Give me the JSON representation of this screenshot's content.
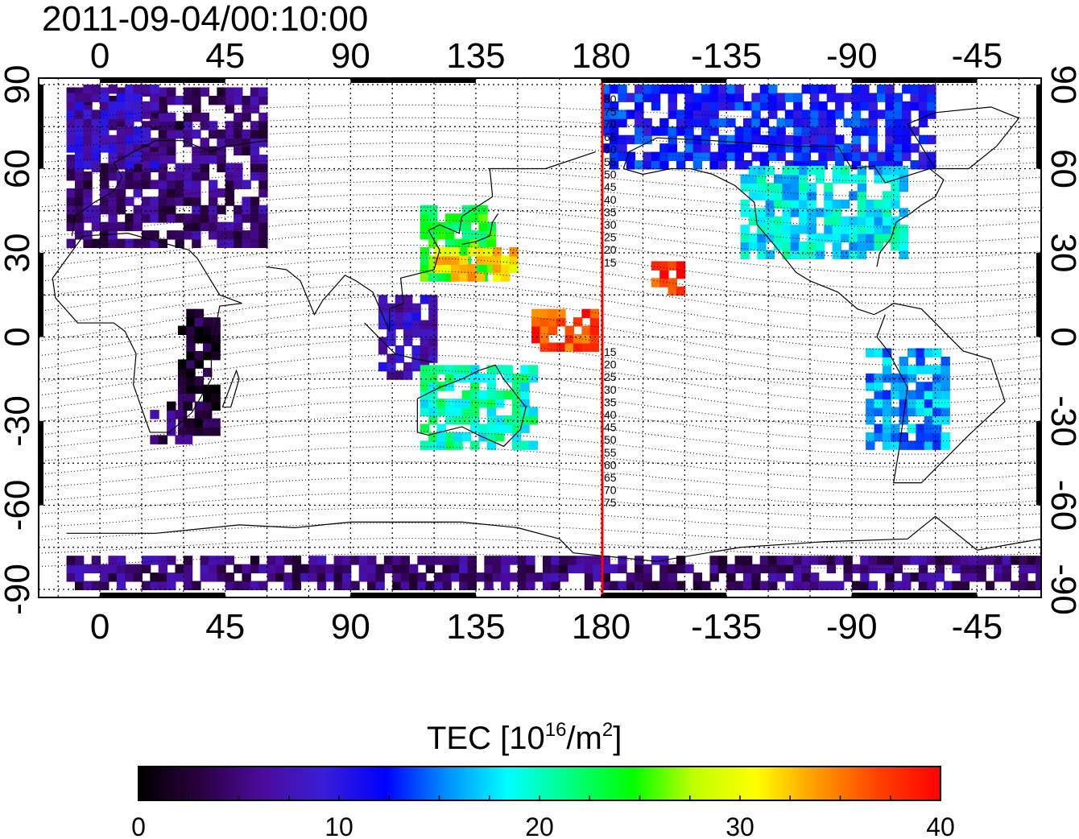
{
  "timestamp": "2011-09-04/00:10:00",
  "map": {
    "longitude_ticks": [
      "0",
      "45",
      "90",
      "135",
      "180",
      "-135",
      "-90",
      "-45"
    ],
    "latitude_ticks": [
      "90",
      "60",
      "30",
      "0",
      "-30",
      "-60",
      "-90"
    ],
    "magnetic_latitude_labels_north": [
      "80",
      "75",
      "70",
      "65",
      "60",
      "55",
      "50",
      "45",
      "40",
      "35",
      "30",
      "25",
      "20",
      "15"
    ],
    "magnetic_latitude_labels_south": [
      "15",
      "20",
      "25",
      "30",
      "35",
      "40",
      "45",
      "50",
      "55",
      "60",
      "65",
      "70",
      "75"
    ],
    "meridian_line_color": "#ff0000",
    "no_data_color": "#ffffff"
  },
  "colorbar": {
    "label_main": "TEC  [10",
    "label_exp": "16",
    "label_unit": "/m",
    "label_unit_exp": "2",
    "label_close": "]",
    "ticks": [
      "0",
      "10",
      "20",
      "30",
      "40"
    ],
    "min": 0,
    "max": 40,
    "colormap": [
      "#000000",
      "#2a0040",
      "#4b0b9b",
      "#3a1dd6",
      "#0000ff",
      "#0090ff",
      "#00ffff",
      "#00ff80",
      "#00ff00",
      "#c0ff00",
      "#ffff00",
      "#ff9a00",
      "#ff4000",
      "#ff0000"
    ]
  },
  "chart_data": {
    "type": "heatmap",
    "title": "2011-09-04/00:10:00",
    "xlabel": "",
    "ylabel": "",
    "xlim": [
      -22,
      338
    ],
    "ylim": [
      -90,
      90
    ],
    "colorbar_label": "TEC [10^16/m^2]",
    "colorbar_range": [
      0,
      40
    ],
    "regions": [
      {
        "lon": [
          -12,
          60
        ],
        "lat": [
          32,
          88
        ],
        "tec": 5
      },
      {
        "lon": [
          -12,
          20
        ],
        "lat": [
          60,
          88
        ],
        "tec": 8
      },
      {
        "lon": [
          28,
          42
        ],
        "lat": [
          -35,
          10
        ],
        "tec": 2
      },
      {
        "lon": [
          18,
          32
        ],
        "lat": [
          -38,
          -25
        ],
        "tec": 4
      },
      {
        "lon": [
          100,
          120
        ],
        "lat": [
          -15,
          15
        ],
        "tec": 8
      },
      {
        "lon": [
          115,
          140
        ],
        "lat": [
          20,
          45
        ],
        "tec": 24
      },
      {
        "lon": [
          120,
          150
        ],
        "lat": [
          20,
          30
        ],
        "tec": 32
      },
      {
        "lon": [
          115,
          155
        ],
        "lat": [
          -40,
          -10
        ],
        "tec": 20
      },
      {
        "lon": [
          155,
          178
        ],
        "lat": [
          -5,
          10
        ],
        "tec": 37
      },
      {
        "lon": [
          198,
          210
        ],
        "lat": [
          15,
          25
        ],
        "tec": 38
      },
      {
        "lon": [
          180,
          300
        ],
        "lat": [
          60,
          88
        ],
        "tec": 12
      },
      {
        "lon": [
          230,
          290
        ],
        "lat": [
          28,
          60
        ],
        "tec": 18
      },
      {
        "lon": [
          275,
          305
        ],
        "lat": [
          -40,
          -5
        ],
        "tec": 16
      },
      {
        "lon": [
          -12,
          338
        ],
        "lat": [
          -90,
          -78
        ],
        "tec": 5
      }
    ]
  }
}
